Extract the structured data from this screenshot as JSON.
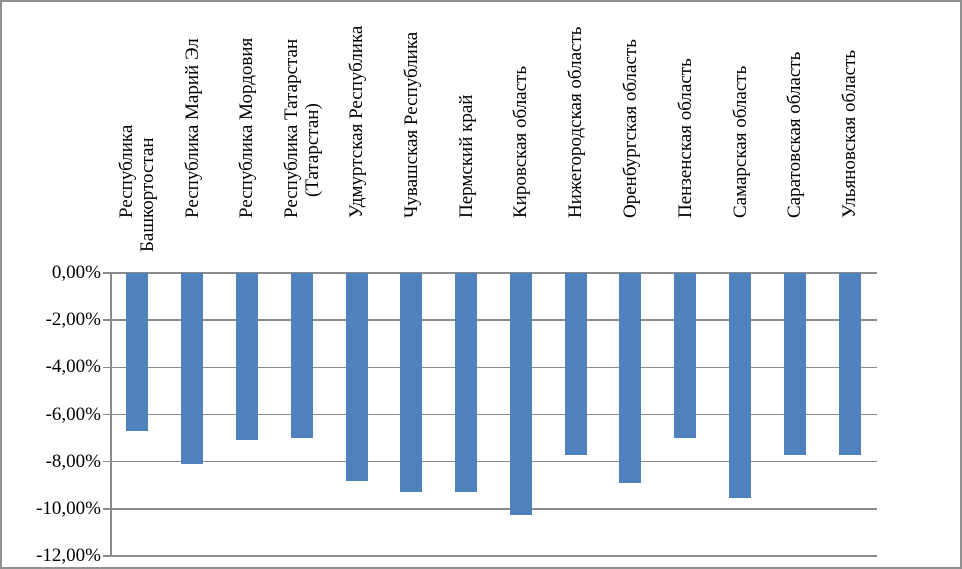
{
  "chart_data": {
    "type": "bar",
    "title": "",
    "categories": [
      [
        "Республика",
        "Башкортостан"
      ],
      [
        "Республика Марий Эл"
      ],
      [
        "Республика Мордовия"
      ],
      [
        "Республика Татарстан",
        "(Татарстан)"
      ],
      [
        "Удмуртская Республика"
      ],
      [
        "Чувашская Республика"
      ],
      [
        "Пермский край"
      ],
      [
        "Кировская область"
      ],
      [
        "Нижегородская область"
      ],
      [
        "Оренбургская область"
      ],
      [
        "Пензенская область"
      ],
      [
        "Самарская область"
      ],
      [
        "Саратовская область"
      ],
      [
        "Ульяновская область"
      ]
    ],
    "values": [
      -6.7,
      -8.1,
      -7.1,
      -7.0,
      -8.8,
      -9.3,
      -9.3,
      -10.25,
      -7.7,
      -8.9,
      -7.0,
      -9.55,
      -7.7,
      -7.7
    ],
    "y_axis": {
      "tick_labels": [
        "0,00%",
        "-2,00%",
        "-4,00%",
        "-6,00%",
        "-8,00%",
        "-10,00%",
        "-12,00%"
      ],
      "tick_values": [
        0,
        -2,
        -4,
        -6,
        -8,
        -10,
        -12
      ],
      "ylim": [
        -12,
        0
      ]
    },
    "x_axis": {
      "position": "top",
      "labels_rotation_deg": 90
    },
    "grid": true,
    "legend": false,
    "colors": {
      "bar": "#4F81BD",
      "grid": "#8A8A8A",
      "axis": "#8A8A8A",
      "text": "#000000",
      "frame_border": "#919191",
      "background": "#FFFFFF"
    }
  }
}
